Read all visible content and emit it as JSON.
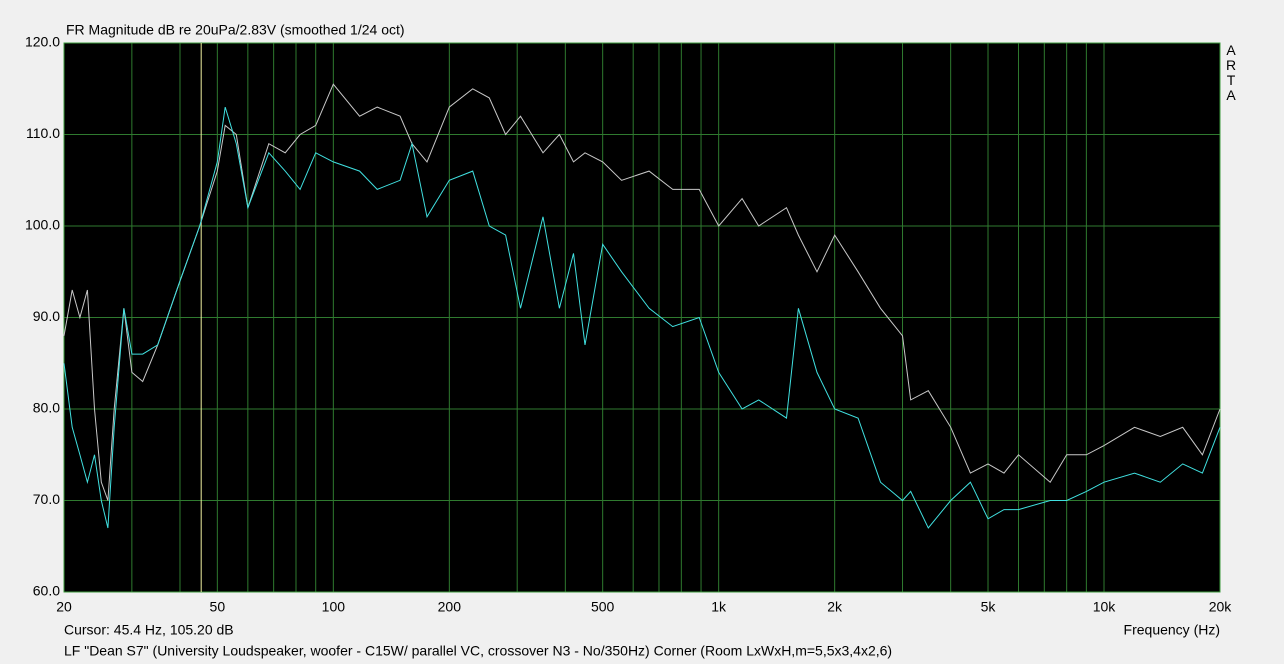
{
  "chart_data": {
    "type": "line",
    "title": "FR Magnitude dB re 20uPa/2.83V (smoothed 1/24 oct)",
    "brand": "ARTA",
    "cursor_text": "Cursor: 45.4 Hz, 105.20 dB",
    "cursor_x": 45.4,
    "footer": "LF \"Dean S7\" (University Loudspeaker, woofer - C15W/ parallel VC,  crossover N3 - No/350Hz) Corner (Room LxWxH,m=5,5x3,4x2,6)",
    "x_label": "Frequency (Hz)",
    "xscale": "log",
    "xlim": [
      20,
      20000
    ],
    "ylim": [
      60,
      120
    ],
    "xticks": [
      20,
      50,
      100,
      200,
      500,
      {
        "value": 1000,
        "label": "1k"
      },
      {
        "value": 2000,
        "label": "2k"
      },
      {
        "value": 5000,
        "label": "5k"
      },
      {
        "value": 10000,
        "label": "10k"
      },
      {
        "value": 20000,
        "label": "20k"
      }
    ],
    "xminor": [
      30,
      40,
      60,
      70,
      80,
      90,
      300,
      400,
      600,
      700,
      800,
      900,
      3000,
      4000,
      6000,
      7000,
      8000,
      9000
    ],
    "yticks": [
      {
        "value": 60,
        "label": "60.0"
      },
      {
        "value": 70,
        "label": "70.0"
      },
      {
        "value": 80,
        "label": "80.0"
      },
      {
        "value": 90,
        "label": "90.0"
      },
      {
        "value": 100,
        "label": "100.0"
      },
      {
        "value": 110,
        "label": "110.0"
      },
      {
        "value": 120,
        "label": "120.0"
      }
    ],
    "grid": true,
    "x": [
      20,
      21,
      22,
      23,
      24,
      25,
      26,
      27,
      28.6,
      30,
      32,
      35,
      40,
      45,
      50,
      52.4,
      56,
      60,
      68,
      75,
      82,
      90,
      100,
      117,
      130,
      149,
      160,
      175,
      200,
      230,
      254,
      280,
      306,
      350,
      386,
      420,
      450,
      500,
      560,
      660,
      760,
      890,
      1000,
      1150,
      1270,
      1500,
      1610,
      1800,
      2000,
      2300,
      2630,
      3000,
      3150,
      3500,
      4000,
      4500,
      5000,
      5500,
      6000,
      7250,
      8000,
      9000,
      10000,
      12000,
      14000,
      16000,
      18000,
      20000
    ],
    "series": [
      {
        "color": "#c8c8c8",
        "values": [
          88,
          93,
          90,
          93,
          80,
          72,
          70,
          80,
          91,
          84,
          83,
          87,
          94,
          100,
          106,
          111,
          110,
          102,
          109,
          108,
          110,
          111,
          115.5,
          112,
          113,
          112,
          109,
          107,
          113,
          115,
          114,
          110,
          112,
          108,
          110,
          107,
          108,
          107,
          105,
          106,
          104,
          104,
          100,
          103,
          100,
          102,
          99,
          95,
          99,
          95,
          91,
          88,
          81,
          82,
          78,
          73,
          74,
          73,
          75,
          72,
          75,
          75,
          76,
          78,
          77,
          78,
          75,
          80
        ]
      },
      {
        "color": "#40e0e0",
        "values": [
          85,
          78,
          75,
          72,
          75,
          70,
          67,
          78,
          91,
          86,
          86,
          87,
          94,
          100,
          107,
          113,
          109,
          102,
          108,
          106,
          104,
          108,
          107,
          106,
          104,
          105,
          109,
          101,
          105,
          106,
          100,
          99,
          91,
          101,
          91,
          97,
          87,
          98,
          95,
          91,
          89,
          90,
          84,
          80,
          81,
          79,
          91,
          84,
          80,
          79,
          72,
          70,
          71,
          67,
          70,
          72,
          68,
          69,
          69,
          70,
          70,
          71,
          72,
          73,
          72,
          74,
          73,
          78
        ]
      }
    ]
  }
}
